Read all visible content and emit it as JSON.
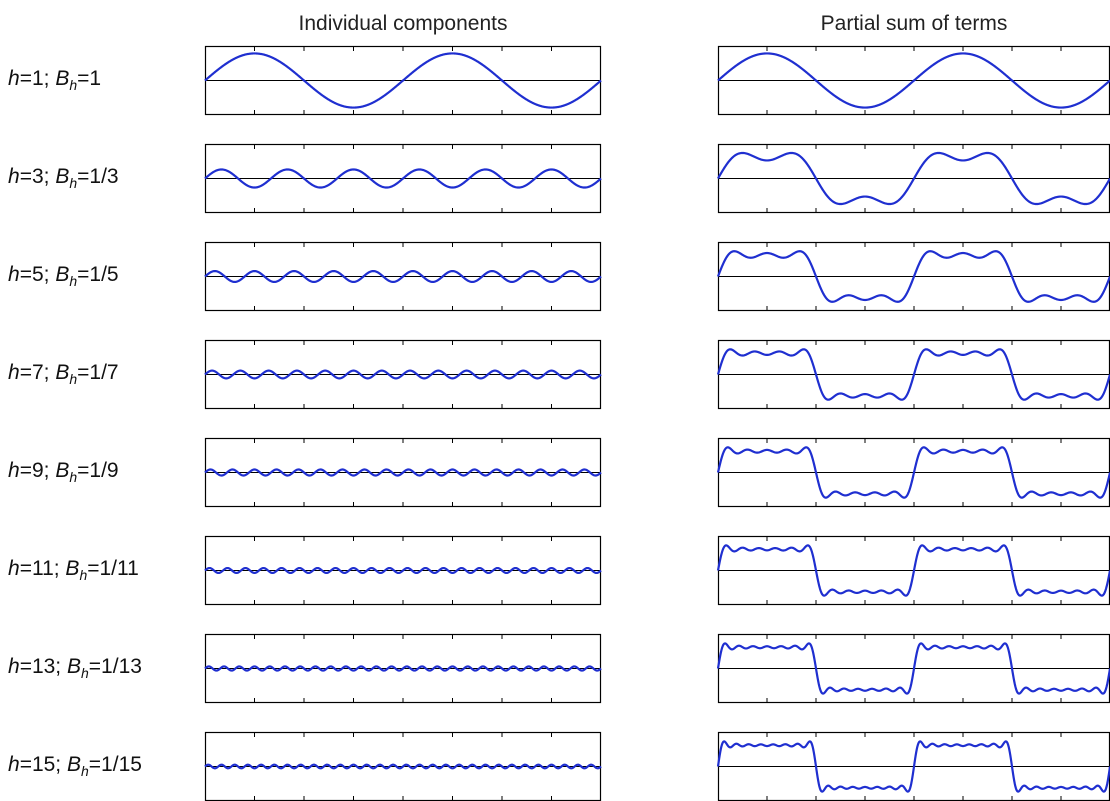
{
  "titles": {
    "left": "Individual components",
    "right": "Partial sum of terms"
  },
  "colors": {
    "wave": "#1f2fd0",
    "axis": "#000000",
    "frame": "#000000"
  },
  "rows": [
    {
      "h": 1,
      "h_text": "1",
      "b_text": "1"
    },
    {
      "h": 3,
      "h_text": "3",
      "b_text": "1/3"
    },
    {
      "h": 5,
      "h_text": "5",
      "b_text": "1/5"
    },
    {
      "h": 7,
      "h_text": "7",
      "b_text": "1/7"
    },
    {
      "h": 9,
      "h_text": "9",
      "b_text": "1/9"
    },
    {
      "h": 11,
      "h_text": "11",
      "b_text": "1/11"
    },
    {
      "h": 13,
      "h_text": "13",
      "b_text": "1/13"
    },
    {
      "h": 15,
      "h_text": "15",
      "b_text": "1/15"
    }
  ],
  "label_parts": {
    "h_var": "h",
    "b_var": "B",
    "b_sub": "h",
    "eq": "=",
    "sep": "; "
  },
  "chart_data": {
    "type": "line",
    "periods": 2,
    "ylim": [
      -1.2,
      1.2
    ],
    "grid": false,
    "individual": "B_h * sin(h * x)",
    "partial_sum": "sum over odd k <= h of sin(k * x) / k"
  }
}
